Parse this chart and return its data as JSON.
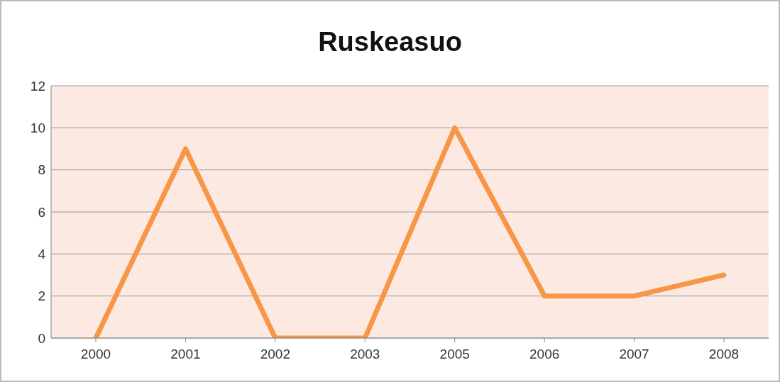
{
  "chart_data": {
    "type": "line",
    "title": "Ruskeasuo",
    "categories": [
      "2000",
      "2001",
      "2002",
      "2003",
      "2005",
      "2006",
      "2007",
      "2008"
    ],
    "series": [
      {
        "color": "#f79646",
        "values": [
          0,
          9,
          0,
          0,
          10,
          2,
          2,
          3
        ]
      }
    ],
    "ylim": [
      0,
      12
    ],
    "yticks": [
      0,
      2,
      4,
      6,
      8,
      10,
      12
    ],
    "grid": "y",
    "marker": "none",
    "line_style": "solid"
  }
}
